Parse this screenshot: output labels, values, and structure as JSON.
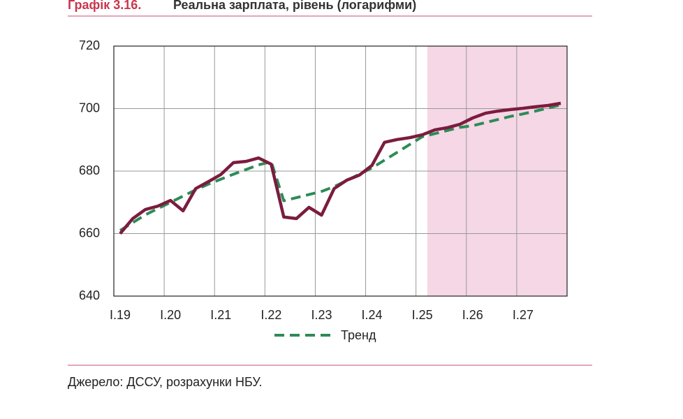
{
  "chart_data": {
    "type": "line",
    "title_number": "Графік 3.16.",
    "title": "Реальна зарплата, рівень (логарифми)",
    "source": "Джерело: ДССУ, розрахунки НБУ.",
    "categories": [
      "I.19",
      null,
      null,
      null,
      "I.20",
      null,
      null,
      null,
      "I.21",
      null,
      null,
      null,
      "I.22",
      null,
      null,
      null,
      "I.23",
      null,
      null,
      null,
      "I.24",
      null,
      null,
      null,
      "I.25",
      null,
      null,
      null,
      "I.26",
      null,
      null,
      null,
      "I.27",
      null,
      null,
      null
    ],
    "series": [
      {
        "color": "#7b1c3e",
        "dashed": false,
        "values": [
          660,
          664.8,
          667.7,
          668.8,
          670.6,
          667.3,
          674.4,
          676.6,
          678.9,
          682.7,
          683.1,
          684.2,
          682.2,
          665.3,
          664.8,
          668.4,
          665.9,
          674.4,
          677.1,
          678.7,
          681.8,
          689.2,
          690.1,
          690.7,
          691.6,
          693.2,
          693.9,
          695,
          697,
          698.5,
          699.2,
          699.7,
          700.1,
          700.6,
          701,
          701.7
        ]
      },
      {
        "name": "Тренд",
        "color": "#2e8b57",
        "dashed": true,
        "values": [
          661,
          663.5,
          666,
          668,
          670,
          672,
          674,
          675.8,
          677.4,
          679,
          680.5,
          682,
          683,
          670.5,
          671.5,
          672.5,
          673.5,
          675,
          677,
          679,
          681,
          683.5,
          686,
          688.5,
          691,
          692,
          693,
          694,
          694.5,
          695.5,
          696.5,
          697.5,
          698.3,
          699.2,
          700.2,
          701.2
        ]
      }
    ],
    "highlight": {
      "from": 25,
      "to": 35,
      "color": "#f5d7e5"
    },
    "ylim": [
      640,
      720
    ],
    "yticks": [
      640,
      660,
      680,
      700,
      720
    ],
    "grid": true
  }
}
